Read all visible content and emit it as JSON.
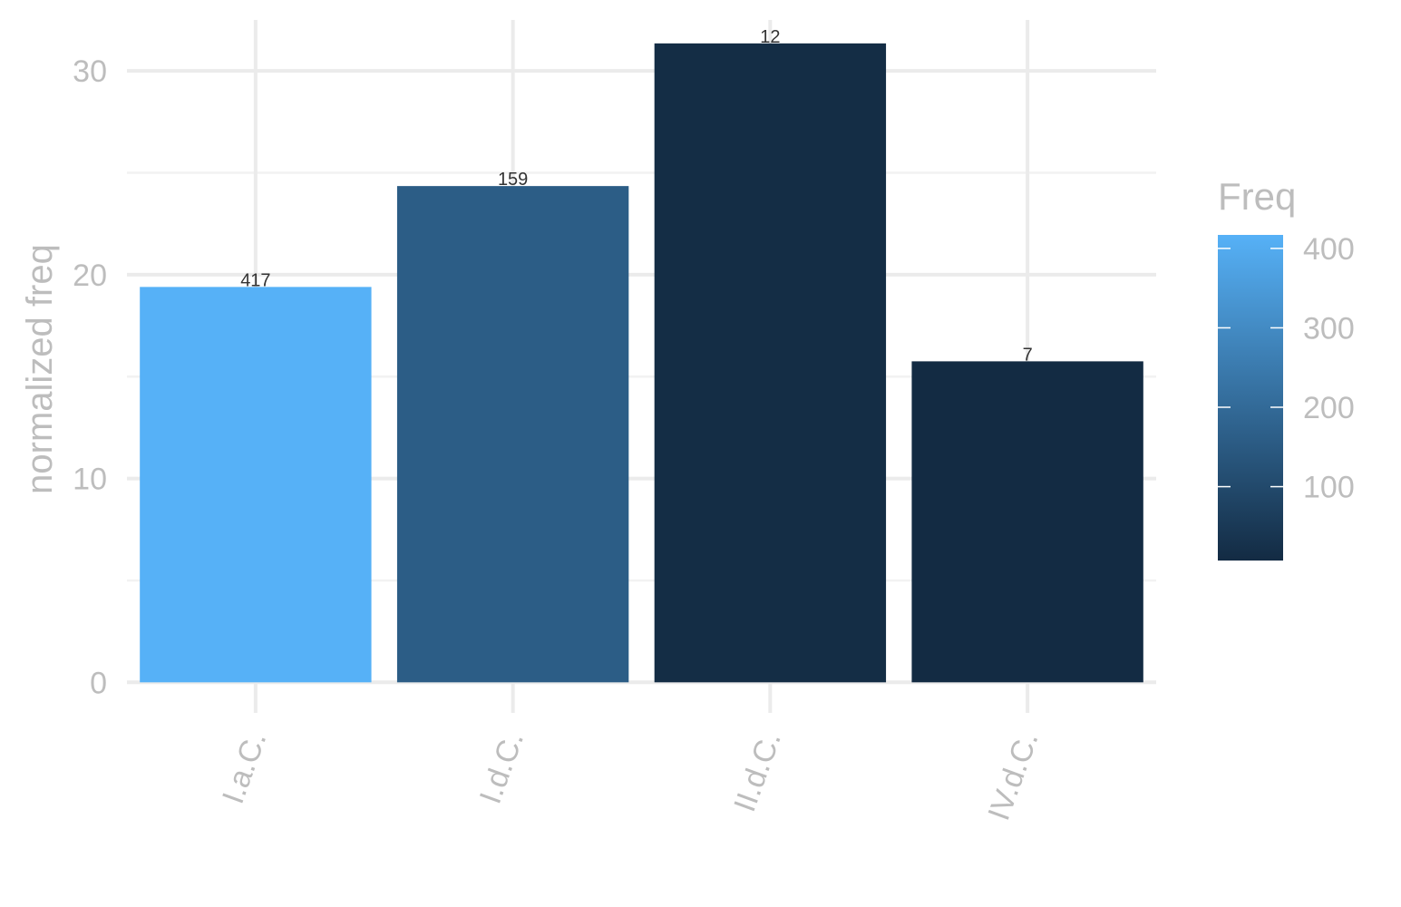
{
  "chart_data": {
    "type": "bar",
    "title": "",
    "xlabel": "",
    "ylabel": "normalized freq",
    "categories": [
      "I.a.C.",
      "I.d.C.",
      "II.d.C.",
      "IV.d.C."
    ],
    "values": [
      19.4,
      24.35,
      31.35,
      15.75
    ],
    "bar_labels": [
      "417",
      "159",
      "12",
      "7"
    ],
    "fill_values": [
      417,
      159,
      12,
      7
    ],
    "ylim": [
      -1.5,
      32.5
    ],
    "yticks": [
      0,
      10,
      20,
      30
    ],
    "ytick_labels": [
      "0",
      "10",
      "20",
      "30"
    ],
    "grid": true,
    "x_tick_rotation": "vertical-ish (slanted)",
    "legend": {
      "title": "Freq",
      "placement": "right",
      "type": "colorbar",
      "range": [
        7,
        417
      ],
      "ticks": [
        100,
        200,
        300,
        400
      ],
      "tick_labels": [
        "100",
        "200",
        "300",
        "400"
      ],
      "color_low": "#132B43",
      "color_high": "#56B1F7"
    }
  }
}
